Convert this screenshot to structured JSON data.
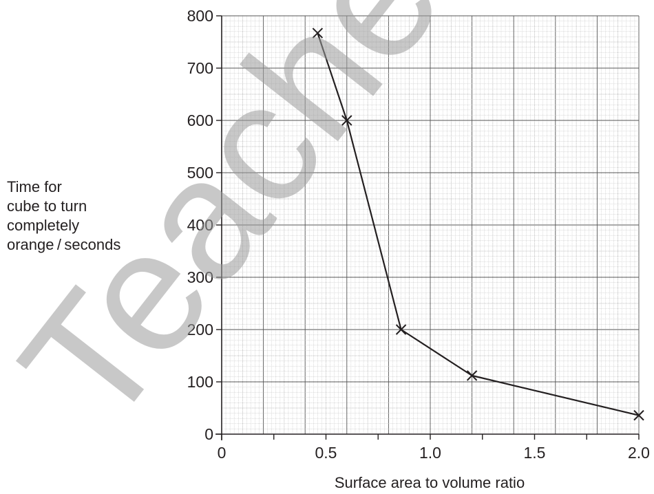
{
  "chart_data": {
    "type": "line",
    "xlabel": "Surface area to volume ratio",
    "ylabel_lines": [
      "Time for",
      "cube to turn",
      "completely",
      "orange / seconds"
    ],
    "x": [
      0.46,
      0.6,
      0.86,
      1.2,
      2.0
    ],
    "y": [
      767,
      600,
      200,
      112,
      36
    ],
    "xlim": [
      0,
      2.0
    ],
    "ylim": [
      0,
      800
    ],
    "x_ticks": [
      0,
      0.5,
      1.0,
      1.5,
      2.0
    ],
    "x_tick_labels": [
      "0",
      "0.5",
      "1.0",
      "1.5",
      "2.0"
    ],
    "y_ticks": [
      0,
      100,
      200,
      300,
      400,
      500,
      600,
      700,
      800
    ],
    "y_tick_labels": [
      "0",
      "100",
      "200",
      "300",
      "400",
      "500",
      "600",
      "700",
      "800"
    ],
    "marker": "x",
    "grid": true,
    "watermark": "Teacher use"
  }
}
